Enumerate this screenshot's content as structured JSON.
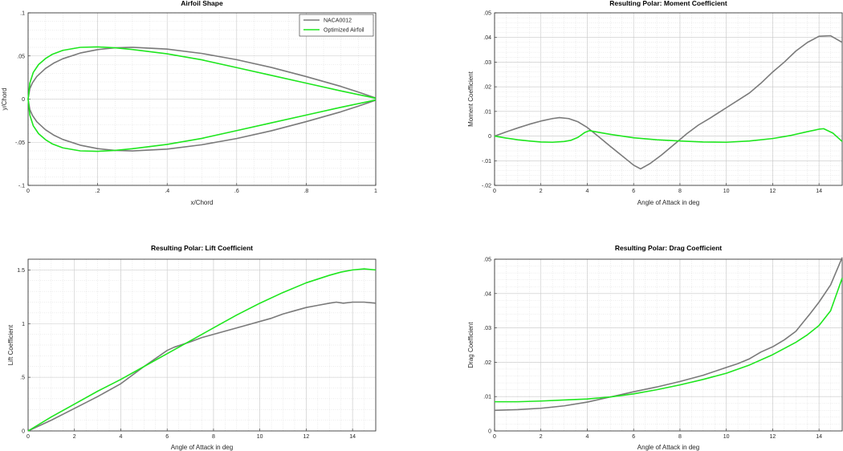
{
  "figure": {
    "colors": {
      "naca": "#7a7a7a",
      "optimized": "#1ee61e",
      "axis": "#262626",
      "grid": "#d9d9d9"
    }
  },
  "chart_data": [
    {
      "type": "line",
      "title": "Airfoil Shape",
      "xlabel": "x/Chord",
      "ylabel": "y/Chord",
      "xlim": [
        0,
        1
      ],
      "ylim": [
        -0.1,
        0.1
      ],
      "xticks": [
        0,
        0.2,
        0.4,
        0.6,
        0.8,
        1
      ],
      "yticks": [
        -0.1,
        -0.05,
        0,
        0.05,
        0.1
      ],
      "grid": true,
      "minor_grid": true,
      "legend": {
        "location": "top-right",
        "entries": [
          "NACA0012",
          "Optimized Airfoil"
        ]
      },
      "series": [
        {
          "name": "NACA0012",
          "color": "#7a7a7a",
          "x": [
            1,
            0.95,
            0.9,
            0.8,
            0.7,
            0.6,
            0.5,
            0.4,
            0.3,
            0.25,
            0.2,
            0.15,
            0.1,
            0.075,
            0.05,
            0.025,
            0.0125,
            0.005,
            0,
            0.005,
            0.0125,
            0.025,
            0.05,
            0.075,
            0.1,
            0.15,
            0.2,
            0.25,
            0.3,
            0.4,
            0.5,
            0.6,
            0.7,
            0.8,
            0.9,
            0.95,
            1
          ],
          "y": [
            0.0013,
            0.0081,
            0.0147,
            0.0261,
            0.0367,
            0.0457,
            0.0529,
            0.058,
            0.0601,
            0.0595,
            0.0574,
            0.0534,
            0.0468,
            0.042,
            0.0355,
            0.0262,
            0.0189,
            0.0121,
            0,
            -0.0121,
            -0.0189,
            -0.0262,
            -0.0355,
            -0.042,
            -0.0468,
            -0.0534,
            -0.0574,
            -0.0595,
            -0.0601,
            -0.058,
            -0.0529,
            -0.0457,
            -0.0367,
            -0.0261,
            -0.0147,
            -0.0081,
            -0.0013
          ]
        },
        {
          "name": "Optimized Airfoil",
          "color": "#1ee61e",
          "x": [
            1,
            0.9,
            0.8,
            0.7,
            0.6,
            0.5,
            0.4,
            0.3,
            0.25,
            0.2,
            0.15,
            0.1,
            0.07,
            0.05,
            0.03,
            0.015,
            0.005,
            0,
            0.005,
            0.015,
            0.03,
            0.05,
            0.07,
            0.1,
            0.15,
            0.2,
            0.25,
            0.3,
            0.4,
            0.5,
            0.6,
            0.7,
            0.8,
            0.9,
            1
          ],
          "y": [
            0.001,
            0.0095,
            0.0185,
            0.0275,
            0.0365,
            0.0455,
            0.0525,
            0.0575,
            0.0595,
            0.0605,
            0.06,
            0.0565,
            0.052,
            0.047,
            0.04,
            0.031,
            0.0185,
            0,
            -0.0185,
            -0.031,
            -0.04,
            -0.047,
            -0.052,
            -0.0565,
            -0.06,
            -0.0605,
            -0.0595,
            -0.0575,
            -0.0525,
            -0.0455,
            -0.0365,
            -0.0275,
            -0.0185,
            -0.0095,
            -0.001
          ]
        }
      ]
    },
    {
      "type": "line",
      "title": "Resulting Polar: Moment Coefficient",
      "xlabel": "Angle of Attack in deg",
      "ylabel": "Moment Coefficient",
      "xlim": [
        0,
        15
      ],
      "ylim": [
        -0.02,
        0.05
      ],
      "xticks": [
        0,
        2,
        4,
        6,
        8,
        10,
        12,
        14
      ],
      "yticks": [
        -0.02,
        -0.01,
        0,
        0.01,
        0.02,
        0.03,
        0.04,
        0.05
      ],
      "grid": true,
      "minor_grid": true,
      "series": [
        {
          "name": "NACA0012",
          "color": "#7a7a7a",
          "x": [
            0,
            0.5,
            1,
            1.5,
            2,
            2.5,
            2.8,
            3.2,
            3.6,
            4,
            4.5,
            5,
            5.5,
            6,
            6.3,
            6.7,
            7.2,
            7.8,
            8.3,
            8.8,
            9.3,
            10,
            10.5,
            11,
            11.5,
            12,
            12.5,
            13,
            13.5,
            14,
            14.5,
            15
          ],
          "y": [
            0,
            0.0017,
            0.0033,
            0.0048,
            0.0061,
            0.0071,
            0.0075,
            0.0071,
            0.0058,
            0.0035,
            -0.0003,
            -0.0042,
            -0.008,
            -0.0118,
            -0.0133,
            -0.0112,
            -0.0077,
            -0.003,
            0.001,
            0.0045,
            0.0073,
            0.0115,
            0.0145,
            0.0175,
            0.0215,
            0.026,
            0.03,
            0.0345,
            0.038,
            0.0405,
            0.0407,
            0.038
          ]
        },
        {
          "name": "Optimized Airfoil",
          "color": "#1ee61e",
          "x": [
            0,
            0.5,
            1,
            1.5,
            2,
            2.5,
            3,
            3.3,
            3.6,
            3.9,
            4.1,
            4.5,
            5,
            6,
            7,
            8,
            9,
            10,
            11,
            12,
            12.8,
            13.5,
            14,
            14.2,
            14.6,
            15
          ],
          "y": [
            0,
            -0.0008,
            -0.0015,
            -0.002,
            -0.0024,
            -0.0025,
            -0.0022,
            -0.0017,
            -0.0005,
            0.0015,
            0.0022,
            0.0015,
            0.0007,
            -0.0007,
            -0.0015,
            -0.002,
            -0.0024,
            -0.0025,
            -0.002,
            -0.001,
            0.0003,
            0.0018,
            0.0028,
            0.003,
            0.0012,
            -0.0022
          ]
        }
      ]
    },
    {
      "type": "line",
      "title": "Resulting Polar: Lift Coefficient",
      "xlabel": "Angle of Attack in deg",
      "ylabel": "Lift Coefficient",
      "xlim": [
        0,
        15
      ],
      "ylim": [
        0,
        1.6
      ],
      "xticks": [
        0,
        2,
        4,
        6,
        8,
        10,
        12,
        14
      ],
      "yticks": [
        0,
        0.5,
        1,
        1.5
      ],
      "grid": true,
      "minor_grid": true,
      "series": [
        {
          "name": "NACA0012",
          "color": "#7a7a7a",
          "x": [
            0,
            1,
            2,
            3,
            4,
            5,
            6,
            6.3,
            7,
            7.5,
            8,
            8.5,
            9,
            9.5,
            10,
            10.5,
            11,
            11.5,
            12,
            12.5,
            13,
            13.3,
            13.6,
            14,
            14.5,
            15
          ],
          "y": [
            0,
            0.1,
            0.21,
            0.32,
            0.44,
            0.6,
            0.75,
            0.78,
            0.83,
            0.87,
            0.9,
            0.93,
            0.96,
            0.99,
            1.02,
            1.05,
            1.09,
            1.12,
            1.15,
            1.17,
            1.19,
            1.2,
            1.19,
            1.2,
            1.2,
            1.19
          ]
        },
        {
          "name": "Optimized Airfoil",
          "color": "#1ee61e",
          "x": [
            0,
            1,
            2,
            3,
            4,
            5,
            6,
            7,
            8,
            9,
            10,
            11,
            12,
            13,
            13.5,
            14,
            14.5,
            15
          ],
          "y": [
            0,
            0.13,
            0.25,
            0.37,
            0.48,
            0.6,
            0.72,
            0.84,
            0.96,
            1.08,
            1.19,
            1.29,
            1.38,
            1.45,
            1.48,
            1.5,
            1.51,
            1.5
          ]
        }
      ]
    },
    {
      "type": "line",
      "title": "Resulting Polar: Drag Coefficient",
      "xlabel": "Angle of Attack in deg",
      "ylabel": "Drag Coefficient",
      "xlim": [
        0,
        15
      ],
      "ylim": [
        0,
        0.05
      ],
      "xticks": [
        0,
        2,
        4,
        6,
        8,
        10,
        12,
        14
      ],
      "yticks": [
        0,
        0.01,
        0.02,
        0.03,
        0.04,
        0.05
      ],
      "grid": true,
      "minor_grid": true,
      "series": [
        {
          "name": "NACA0012",
          "color": "#7a7a7a",
          "x": [
            0,
            1,
            2,
            3,
            4,
            5,
            6,
            7,
            8,
            9,
            10,
            10.5,
            11,
            11.5,
            12,
            12.5,
            13,
            13.3,
            13.6,
            14,
            14.5,
            15
          ],
          "y": [
            0.006,
            0.0062,
            0.0066,
            0.0073,
            0.0084,
            0.0099,
            0.0114,
            0.0128,
            0.0144,
            0.0162,
            0.0185,
            0.0196,
            0.021,
            0.023,
            0.0245,
            0.0265,
            0.029,
            0.0315,
            0.034,
            0.0375,
            0.0425,
            0.0505
          ]
        },
        {
          "name": "Optimized Airfoil",
          "color": "#1ee61e",
          "x": [
            0,
            1,
            2,
            3,
            4,
            5,
            6,
            7,
            8,
            9,
            10,
            11,
            12,
            13,
            13.5,
            14,
            14.5,
            15
          ],
          "y": [
            0.0085,
            0.0085,
            0.0087,
            0.009,
            0.0093,
            0.0099,
            0.0108,
            0.012,
            0.0134,
            0.015,
            0.0168,
            0.0192,
            0.0222,
            0.0258,
            0.028,
            0.0307,
            0.035,
            0.0445
          ]
        }
      ]
    }
  ]
}
